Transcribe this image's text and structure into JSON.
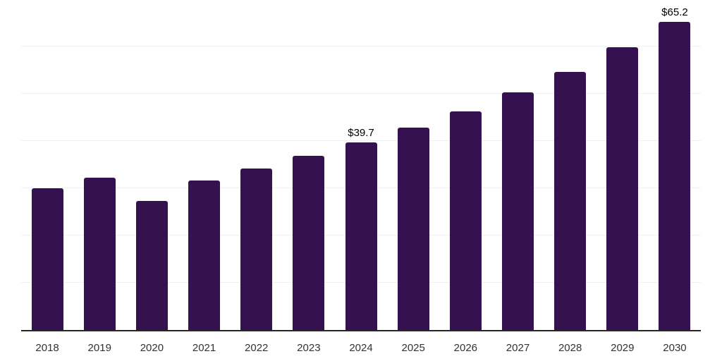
{
  "chart": {
    "background_color": "#ffffff",
    "bar_color": "#36114f",
    "gridline_color": "#f1f1f3",
    "axis_line_color": "#262626",
    "tick_label_color": "#333333",
    "data_label_color": "#000000"
  },
  "chart_data": {
    "type": "bar",
    "title": "",
    "xlabel": "",
    "ylabel": "",
    "categories": [
      "2018",
      "2019",
      "2020",
      "2021",
      "2022",
      "2023",
      "2024",
      "2025",
      "2026",
      "2027",
      "2028",
      "2029",
      "2030"
    ],
    "values": [
      30.0,
      32.2,
      27.3,
      31.6,
      34.2,
      36.9,
      39.7,
      42.9,
      46.3,
      50.3,
      54.7,
      59.8,
      65.2
    ],
    "data_labels": [
      null,
      null,
      null,
      null,
      null,
      null,
      "$39.7",
      null,
      null,
      null,
      null,
      null,
      "$65.2"
    ],
    "value_prefix": "$",
    "ylim": [
      0,
      70
    ],
    "gridline_values": [
      10,
      20,
      30,
      40,
      50,
      60,
      70
    ],
    "y_tick_labels_shown": false,
    "grid": "horizontal",
    "legend_position": "none"
  }
}
